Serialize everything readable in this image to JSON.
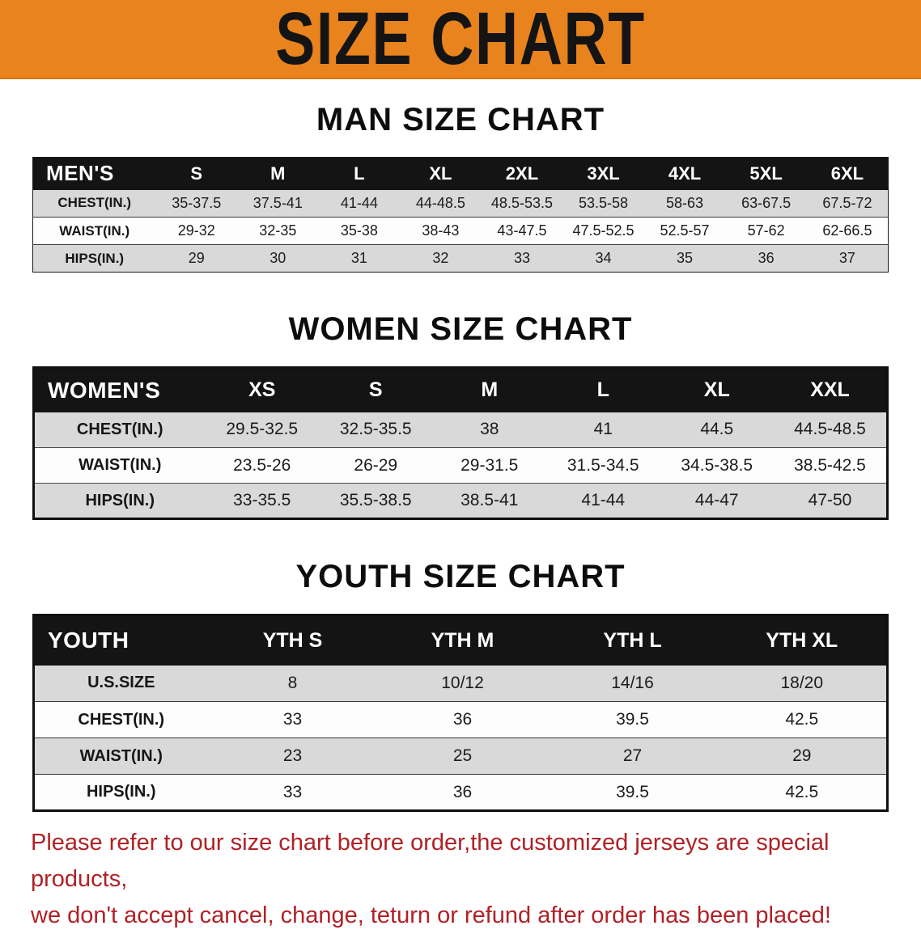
{
  "banner": {
    "title": "SIZE CHART"
  },
  "colors": {
    "banner_bg": "#E8831D",
    "table_header_bg": "#141414",
    "row_shade": "#D9D9D9",
    "disclaimer_red": "#B02126"
  },
  "sections": [
    {
      "heading": "MAN SIZE CHART",
      "table": {
        "label_header": "MEN'S",
        "size_headers": [
          "S",
          "M",
          "L",
          "XL",
          "2XL",
          "3XL",
          "4XL",
          "5XL",
          "6XL"
        ],
        "rows": [
          {
            "label": "CHEST(IN.)",
            "values": [
              "35-37.5",
              "37.5-41",
              "41-44",
              "44-48.5",
              "48.5-53.5",
              "53.5-58",
              "58-63",
              "63-67.5",
              "67.5-72"
            ]
          },
          {
            "label": "WAIST(IN.)",
            "values": [
              "29-32",
              "32-35",
              "35-38",
              "38-43",
              "43-47.5",
              "47.5-52.5",
              "52.5-57",
              "57-62",
              "62-66.5"
            ]
          },
          {
            "label": "HIPS(IN.)",
            "values": [
              "29",
              "30",
              "31",
              "32",
              "33",
              "34",
              "35",
              "36",
              "37"
            ]
          }
        ]
      }
    },
    {
      "heading": "WOMEN SIZE CHART",
      "table": {
        "label_header": "WOMEN'S",
        "size_headers": [
          "XS",
          "S",
          "M",
          "L",
          "XL",
          "XXL"
        ],
        "rows": [
          {
            "label": "CHEST(IN.)",
            "values": [
              "29.5-32.5",
              "32.5-35.5",
              "38",
              "41",
              "44.5",
              "44.5-48.5"
            ]
          },
          {
            "label": "WAIST(IN.)",
            "values": [
              "23.5-26",
              "26-29",
              "29-31.5",
              "31.5-34.5",
              "34.5-38.5",
              "38.5-42.5"
            ]
          },
          {
            "label": "HIPS(IN.)",
            "values": [
              "33-35.5",
              "35.5-38.5",
              "38.5-41",
              "41-44",
              "44-47",
              "47-50"
            ]
          }
        ]
      }
    },
    {
      "heading": "YOUTH SIZE CHART",
      "table": {
        "label_header": "YOUTH",
        "size_headers": [
          "YTH S",
          "YTH M",
          "YTH L",
          "YTH XL"
        ],
        "rows": [
          {
            "label": "U.S.SIZE",
            "values": [
              "8",
              "10/12",
              "14/16",
              "18/20"
            ]
          },
          {
            "label": "CHEST(IN.)",
            "values": [
              "33",
              "36",
              "39.5",
              "42.5"
            ]
          },
          {
            "label": "WAIST(IN.)",
            "values": [
              "23",
              "25",
              "27",
              "29"
            ]
          },
          {
            "label": "HIPS(IN.)",
            "values": [
              "33",
              "36",
              "39.5",
              "42.5"
            ]
          }
        ]
      }
    }
  ],
  "disclaimer": {
    "line1": "Please refer to our size chart before order,the customized jerseys are special products,",
    "line2": "we don't accept cancel, change, teturn or refund after order has been placed!"
  }
}
